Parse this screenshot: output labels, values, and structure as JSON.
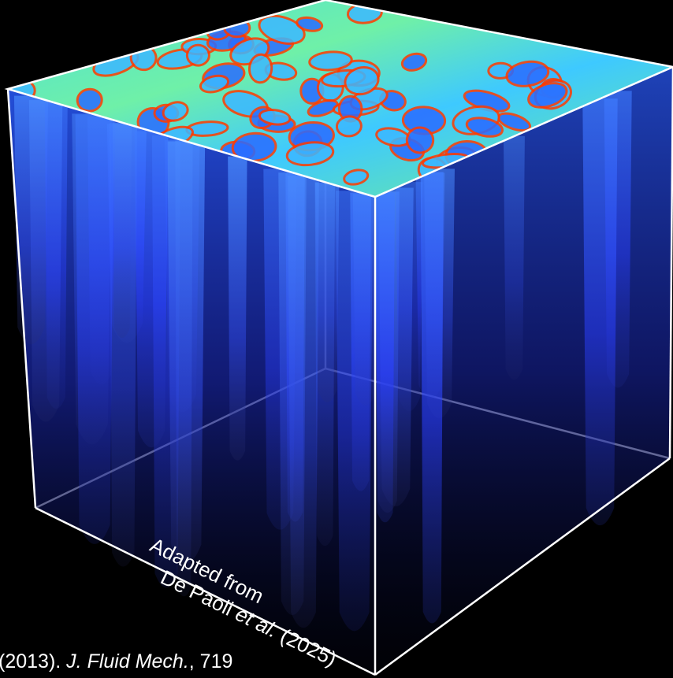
{
  "caption": {
    "line1": "Adapted from",
    "line2_author": "De Paoli ",
    "line2_etal": "et al.",
    "line2_year": " (2025)"
  },
  "citation": {
    "prefix": "(2013). ",
    "journal": "J. Fluid Mech.",
    "suffix": ", 719"
  },
  "colors": {
    "background": "#000000",
    "edge": "#ffffff",
    "top_cool": "#2a6cff",
    "top_mid": "#7ef0d0",
    "top_hot": "#ff3a00",
    "plume": "#2f4fff"
  }
}
